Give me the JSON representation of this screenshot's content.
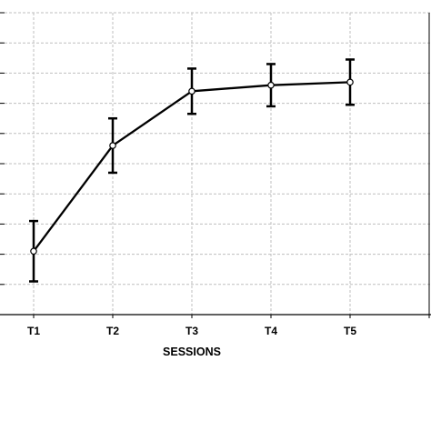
{
  "chart_data": {
    "type": "line",
    "xlabel": "SESSIONS",
    "categories": [
      "T1",
      "T2",
      "T3",
      "T4",
      "T5"
    ],
    "series": [
      {
        "values": [
          2.1,
          5.6,
          7.4,
          7.6,
          7.7
        ],
        "error": [
          1.0,
          0.9,
          0.75,
          0.7,
          0.75
        ]
      }
    ],
    "ylim": [
      0,
      10
    ],
    "grid": true,
    "colors": {
      "line": "#000000",
      "grid": "#bfbfbf",
      "axis": "#000000",
      "marker_fill": "#ffffff"
    }
  }
}
